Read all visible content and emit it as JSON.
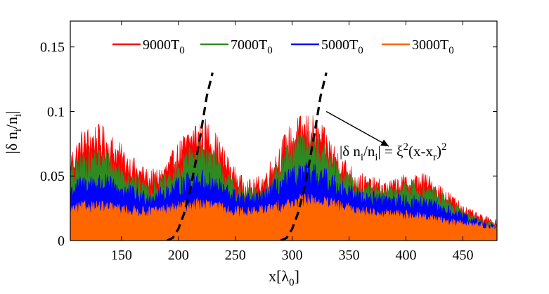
{
  "chart_data": {
    "type": "area",
    "xlim": [
      105,
      480
    ],
    "ylim": [
      0,
      0.17
    ],
    "xticks": [
      150,
      200,
      250,
      300,
      350,
      400,
      450
    ],
    "yticks": [
      0,
      0.05,
      0.1,
      0.15
    ],
    "xtick_labels": [
      "150",
      "200",
      "250",
      "300",
      "350",
      "400",
      "450"
    ],
    "ytick_labels": [
      "0",
      "0.05",
      "0.1",
      "0.15"
    ],
    "legend_position": "top",
    "series": [
      {
        "name": "9000T",
        "name_sub": "0",
        "color": "#ff0000",
        "x": [
          105,
          115,
          125,
          135,
          145,
          155,
          165,
          175,
          185,
          195,
          205,
          215,
          225,
          235,
          245,
          255,
          265,
          275,
          285,
          295,
          305,
          315,
          325,
          335,
          345,
          355,
          365,
          375,
          385,
          395,
          405,
          415,
          425,
          435,
          445,
          455,
          465,
          475,
          480
        ],
        "y": [
          0.055,
          0.068,
          0.072,
          0.07,
          0.063,
          0.055,
          0.048,
          0.043,
          0.046,
          0.055,
          0.066,
          0.075,
          0.075,
          0.064,
          0.05,
          0.04,
          0.037,
          0.042,
          0.055,
          0.068,
          0.076,
          0.079,
          0.072,
          0.062,
          0.052,
          0.044,
          0.04,
          0.038,
          0.037,
          0.04,
          0.041,
          0.042,
          0.038,
          0.032,
          0.026,
          0.02,
          0.016,
          0.014,
          0.013
        ]
      },
      {
        "name": "7000T",
        "name_sub": "0",
        "color": "#2e8b22",
        "x": [
          105,
          115,
          125,
          135,
          145,
          155,
          165,
          175,
          185,
          195,
          205,
          215,
          225,
          235,
          245,
          255,
          265,
          275,
          285,
          295,
          305,
          315,
          325,
          335,
          345,
          355,
          365,
          375,
          385,
          395,
          405,
          415,
          425,
          435,
          445,
          455,
          465,
          475,
          480
        ],
        "y": [
          0.045,
          0.054,
          0.058,
          0.057,
          0.051,
          0.045,
          0.04,
          0.036,
          0.039,
          0.046,
          0.055,
          0.062,
          0.061,
          0.052,
          0.042,
          0.034,
          0.032,
          0.036,
          0.047,
          0.058,
          0.066,
          0.068,
          0.062,
          0.053,
          0.045,
          0.039,
          0.036,
          0.034,
          0.034,
          0.036,
          0.037,
          0.036,
          0.033,
          0.028,
          0.022,
          0.018,
          0.014,
          0.012,
          0.011
        ]
      },
      {
        "name": "5000T",
        "name_sub": "0",
        "color": "#0000ff",
        "x": [
          105,
          115,
          125,
          135,
          145,
          155,
          165,
          175,
          185,
          195,
          205,
          215,
          225,
          235,
          245,
          255,
          265,
          275,
          285,
          295,
          305,
          315,
          325,
          335,
          345,
          355,
          365,
          375,
          385,
          395,
          405,
          415,
          425,
          435,
          445,
          455,
          465,
          475,
          480
        ],
        "y": [
          0.036,
          0.04,
          0.042,
          0.041,
          0.038,
          0.035,
          0.032,
          0.031,
          0.033,
          0.037,
          0.041,
          0.044,
          0.043,
          0.039,
          0.034,
          0.03,
          0.029,
          0.032,
          0.038,
          0.043,
          0.047,
          0.048,
          0.046,
          0.042,
          0.037,
          0.033,
          0.031,
          0.03,
          0.029,
          0.029,
          0.028,
          0.027,
          0.025,
          0.022,
          0.019,
          0.016,
          0.013,
          0.011,
          0.01
        ]
      },
      {
        "name": "3000T",
        "name_sub": "0",
        "color": "#ff6600",
        "x": [
          105,
          115,
          125,
          135,
          145,
          155,
          165,
          175,
          185,
          195,
          205,
          215,
          225,
          235,
          245,
          255,
          265,
          275,
          285,
          295,
          305,
          315,
          325,
          335,
          345,
          355,
          365,
          375,
          385,
          395,
          405,
          415,
          425,
          435,
          445,
          455,
          465,
          475,
          480
        ],
        "y": [
          0.022,
          0.024,
          0.025,
          0.024,
          0.023,
          0.022,
          0.021,
          0.021,
          0.022,
          0.023,
          0.025,
          0.026,
          0.026,
          0.024,
          0.022,
          0.021,
          0.021,
          0.022,
          0.024,
          0.026,
          0.028,
          0.029,
          0.028,
          0.026,
          0.024,
          0.022,
          0.021,
          0.02,
          0.019,
          0.019,
          0.018,
          0.017,
          0.016,
          0.014,
          0.013,
          0.012,
          0.011,
          0.01,
          0.009
        ]
      }
    ],
    "dashed_curves": [
      {
        "x": [
          190,
          195,
          200,
          205,
          210,
          215,
          220,
          225,
          230
        ],
        "y": [
          0,
          0.002,
          0.009,
          0.021,
          0.038,
          0.06,
          0.085,
          0.112,
          0.13
        ]
      },
      {
        "x": [
          290,
          295,
          300,
          305,
          310,
          315,
          320,
          325,
          330
        ],
        "y": [
          0,
          0.002,
          0.009,
          0.021,
          0.038,
          0.06,
          0.085,
          0.112,
          0.13
        ]
      }
    ],
    "annotation": {
      "text_prefix": "|δ n",
      "sub_1": "i",
      "slash": "/n",
      "sub_2": "i",
      "equals": "| = ξ",
      "sup": "2",
      "open": "(x-x",
      "sub_3": "r",
      "close": ")",
      "sup_2": "2",
      "x": 370,
      "y": 0.046,
      "arrow_from_x": 330,
      "arrow_from_y": 0.1,
      "arrow_to_x": 385,
      "arrow_to_y": 0.073
    },
    "ylabel": {
      "part1": "|δ n",
      "sub1": "i",
      "part2": "/n",
      "sub2": "i",
      "part3": "|"
    },
    "xlabel": {
      "part1": "x[λ",
      "sub1": "0",
      "part2": "]"
    }
  }
}
